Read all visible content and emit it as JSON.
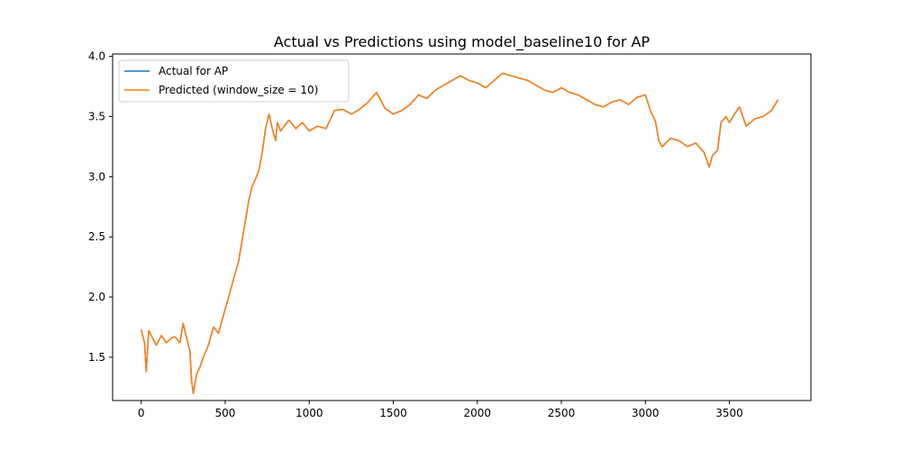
{
  "chart_data": {
    "type": "line",
    "title": "Actual vs Predictions using model_baseline10 for AP",
    "xlabel": "",
    "ylabel": "",
    "xlim": [
      -170,
      3985
    ],
    "ylim": [
      1.14,
      4.02
    ],
    "xticks": [
      0,
      500,
      1000,
      1500,
      2000,
      2500,
      3000,
      3500
    ],
    "xtick_labels": [
      "0",
      "500",
      "1000",
      "1500",
      "2000",
      "2500",
      "3000",
      "3500"
    ],
    "yticks": [
      1.5,
      2.0,
      2.5,
      3.0,
      3.5,
      4.0
    ],
    "ytick_labels": [
      "1.5",
      "2.0",
      "2.5",
      "3.0",
      "3.5",
      "4.0"
    ],
    "grid": false,
    "legend_position": "top-left",
    "series": [
      {
        "name": "Actual for AP",
        "color": "#1f77b4",
        "x": [
          0,
          20,
          30,
          45,
          60,
          90,
          120,
          150,
          180,
          200,
          230,
          250,
          270,
          290,
          300,
          310,
          330,
          350,
          370,
          400,
          430,
          460,
          490,
          520,
          550,
          580,
          610,
          640,
          660,
          680,
          700,
          720,
          740,
          760,
          780,
          800,
          810,
          830,
          850,
          880,
          920,
          960,
          1000,
          1050,
          1100,
          1150,
          1200,
          1250,
          1300,
          1350,
          1400,
          1450,
          1500,
          1550,
          1600,
          1650,
          1700,
          1750,
          1800,
          1850,
          1900,
          1950,
          2000,
          2050,
          2100,
          2150,
          2200,
          2250,
          2300,
          2350,
          2400,
          2450,
          2500,
          2550,
          2600,
          2650,
          2700,
          2750,
          2800,
          2850,
          2900,
          2950,
          3000,
          3030,
          3060,
          3080,
          3100,
          3150,
          3200,
          3250,
          3300,
          3350,
          3380,
          3400,
          3430,
          3450,
          3480,
          3500,
          3530,
          3560,
          3600,
          3650,
          3700,
          3750,
          3790
        ],
        "y": [
          1.73,
          1.62,
          1.38,
          1.72,
          1.68,
          1.6,
          1.68,
          1.62,
          1.66,
          1.67,
          1.62,
          1.78,
          1.66,
          1.55,
          1.3,
          1.2,
          1.36,
          1.42,
          1.5,
          1.6,
          1.75,
          1.7,
          1.85,
          2.0,
          2.15,
          2.3,
          2.55,
          2.8,
          2.92,
          2.98,
          3.05,
          3.2,
          3.4,
          3.52,
          3.4,
          3.3,
          3.45,
          3.38,
          3.42,
          3.47,
          3.4,
          3.45,
          3.38,
          3.42,
          3.4,
          3.55,
          3.56,
          3.52,
          3.56,
          3.62,
          3.7,
          3.57,
          3.52,
          3.55,
          3.6,
          3.68,
          3.65,
          3.72,
          3.76,
          3.8,
          3.84,
          3.8,
          3.78,
          3.74,
          3.8,
          3.86,
          3.84,
          3.82,
          3.8,
          3.76,
          3.72,
          3.7,
          3.74,
          3.7,
          3.68,
          3.64,
          3.6,
          3.58,
          3.62,
          3.64,
          3.6,
          3.66,
          3.68,
          3.55,
          3.46,
          3.3,
          3.25,
          3.32,
          3.3,
          3.25,
          3.28,
          3.2,
          3.08,
          3.18,
          3.22,
          3.45,
          3.5,
          3.45,
          3.52,
          3.58,
          3.42,
          3.48,
          3.5,
          3.55,
          3.64
        ]
      },
      {
        "name": "Predicted (window_size = 10)",
        "color": "#ff7f0e",
        "x": [
          0,
          20,
          30,
          45,
          60,
          90,
          120,
          150,
          180,
          200,
          230,
          250,
          270,
          290,
          300,
          310,
          330,
          350,
          370,
          400,
          430,
          460,
          490,
          520,
          550,
          580,
          610,
          640,
          660,
          680,
          700,
          720,
          740,
          760,
          780,
          800,
          810,
          830,
          850,
          880,
          920,
          960,
          1000,
          1050,
          1100,
          1150,
          1200,
          1250,
          1300,
          1350,
          1400,
          1450,
          1500,
          1550,
          1600,
          1650,
          1700,
          1750,
          1800,
          1850,
          1900,
          1950,
          2000,
          2050,
          2100,
          2150,
          2200,
          2250,
          2300,
          2350,
          2400,
          2450,
          2500,
          2550,
          2600,
          2650,
          2700,
          2750,
          2800,
          2850,
          2900,
          2950,
          3000,
          3030,
          3060,
          3080,
          3100,
          3150,
          3200,
          3250,
          3300,
          3350,
          3380,
          3400,
          3430,
          3450,
          3480,
          3500,
          3530,
          3560,
          3600,
          3650,
          3700,
          3750,
          3790
        ],
        "y": [
          1.73,
          1.62,
          1.38,
          1.72,
          1.68,
          1.6,
          1.68,
          1.62,
          1.66,
          1.67,
          1.62,
          1.78,
          1.66,
          1.55,
          1.3,
          1.2,
          1.36,
          1.42,
          1.5,
          1.6,
          1.75,
          1.7,
          1.85,
          2.0,
          2.15,
          2.3,
          2.55,
          2.8,
          2.92,
          2.98,
          3.05,
          3.2,
          3.4,
          3.52,
          3.4,
          3.3,
          3.45,
          3.38,
          3.42,
          3.47,
          3.4,
          3.45,
          3.38,
          3.42,
          3.4,
          3.55,
          3.56,
          3.52,
          3.56,
          3.62,
          3.7,
          3.57,
          3.52,
          3.55,
          3.6,
          3.68,
          3.65,
          3.72,
          3.76,
          3.8,
          3.84,
          3.8,
          3.78,
          3.74,
          3.8,
          3.86,
          3.84,
          3.82,
          3.8,
          3.76,
          3.72,
          3.7,
          3.74,
          3.7,
          3.68,
          3.64,
          3.6,
          3.58,
          3.62,
          3.64,
          3.6,
          3.66,
          3.68,
          3.55,
          3.46,
          3.3,
          3.25,
          3.32,
          3.3,
          3.25,
          3.28,
          3.2,
          3.08,
          3.18,
          3.22,
          3.45,
          3.5,
          3.45,
          3.52,
          3.58,
          3.42,
          3.48,
          3.5,
          3.55,
          3.64
        ]
      }
    ]
  }
}
